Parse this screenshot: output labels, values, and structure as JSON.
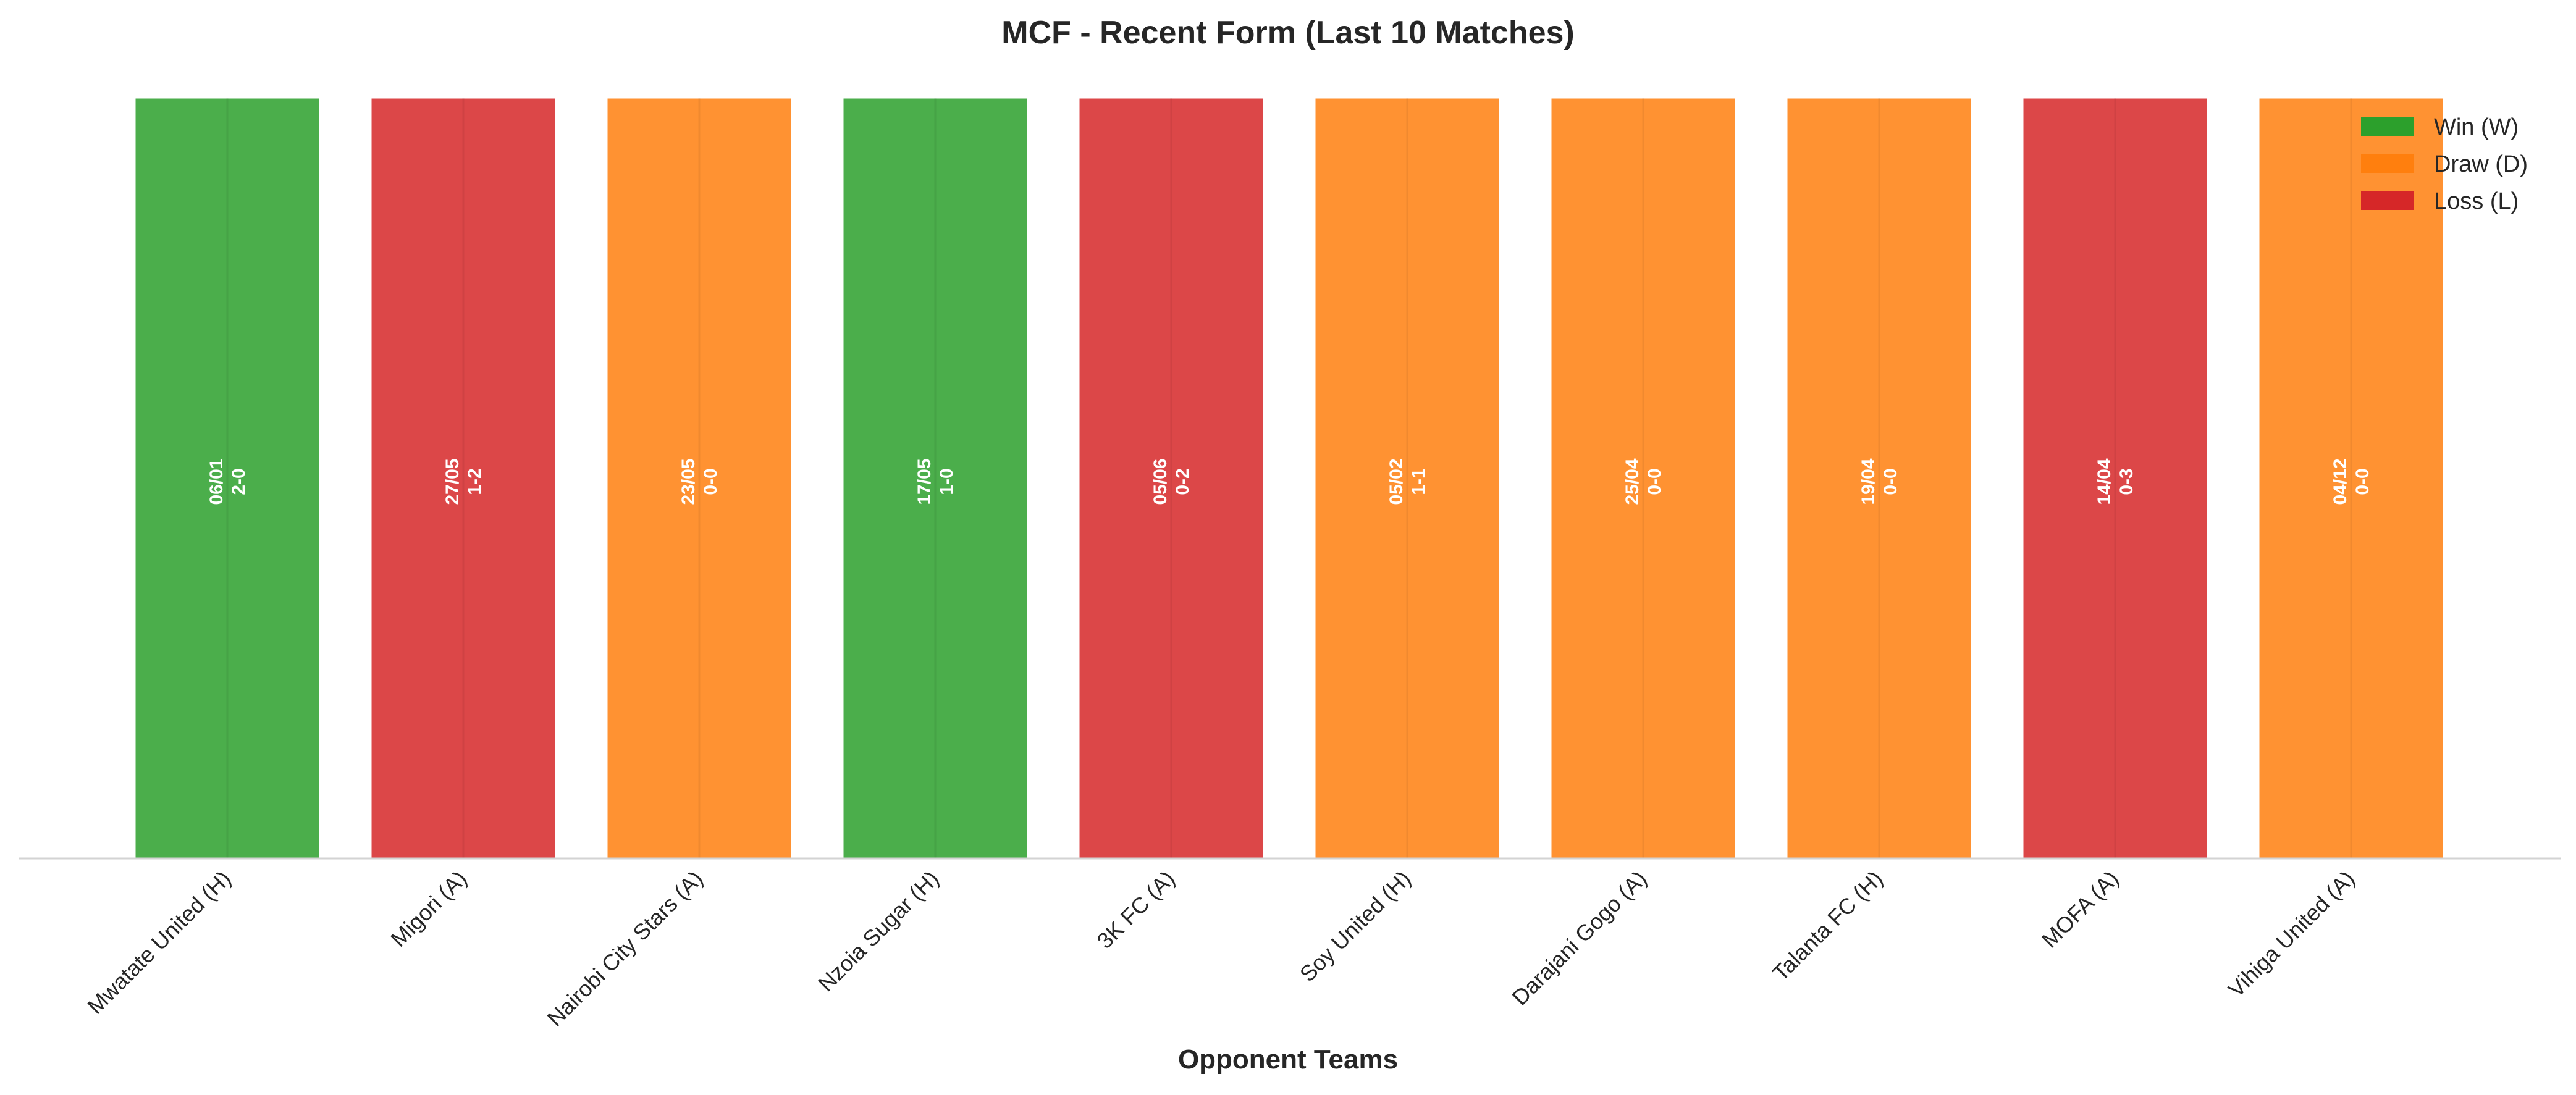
{
  "chart_data": {
    "type": "bar",
    "title": "MCF - Recent Form (Last 10 Matches)",
    "xlabel": "Opponent Teams",
    "ylabel": "",
    "ylim": [
      0,
      1
    ],
    "categories": [
      "Mwatate United (H)",
      "Migori (A)",
      "Nairobi City Stars (A)",
      "Nzoia Sugar (H)",
      "3K FC (A)",
      "Soy United (H)",
      "Darajani Gogo (A)",
      "Talanta FC (H)",
      "MOFA (A)",
      "Vihiga United (A)"
    ],
    "values": [
      1,
      1,
      1,
      1,
      1,
      1,
      1,
      1,
      1,
      1
    ],
    "results": [
      "W",
      "L",
      "D",
      "W",
      "L",
      "D",
      "D",
      "D",
      "L",
      "D"
    ],
    "dates": [
      "06/01",
      "27/05",
      "23/05",
      "17/05",
      "05/06",
      "05/02",
      "25/04",
      "19/04",
      "14/04",
      "04/12"
    ],
    "scores": [
      "2-0",
      "1-2",
      "0-0",
      "1-0",
      "0-2",
      "1-1",
      "0-0",
      "0-0",
      "0-3",
      "0-0"
    ],
    "legend": {
      "position": "top-right",
      "entries": [
        {
          "key": "W",
          "label": "Win (W)",
          "color": "#2ca02c"
        },
        {
          "key": "D",
          "label": "Draw (D)",
          "color": "#ff7f0e"
        },
        {
          "key": "L",
          "label": "Loss (L)",
          "color": "#d62728"
        }
      ]
    },
    "grid": false
  }
}
